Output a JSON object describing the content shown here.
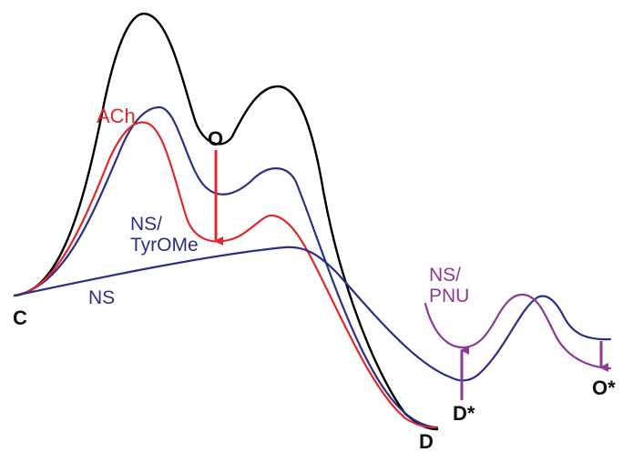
{
  "labels": {
    "ach": "ACh",
    "ns_tyrome_line1": "NS/",
    "ns_tyrome_line2": "TyrOMe",
    "ns": "NS",
    "ns_pnu_line1": "NS/",
    "ns_pnu_line2": "PNU",
    "state_c": "C",
    "state_o": "O",
    "state_d": "D",
    "state_d_star": "D*",
    "state_o_star": "O*"
  },
  "colors": {
    "black_curve": "#000000",
    "ach": "#e0282d",
    "ns_blue": "#2b2f86",
    "ns_pnu": "#8b3a96",
    "text_black": "#111111"
  }
}
